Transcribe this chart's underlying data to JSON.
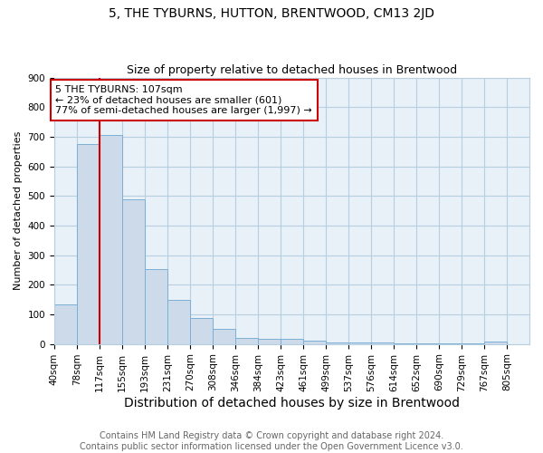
{
  "title": "5, THE TYBURNS, HUTTON, BRENTWOOD, CM13 2JD",
  "subtitle": "Size of property relative to detached houses in Brentwood",
  "xlabel": "Distribution of detached houses by size in Brentwood",
  "ylabel": "Number of detached properties",
  "footer_line1": "Contains HM Land Registry data © Crown copyright and database right 2024.",
  "footer_line2": "Contains public sector information licensed under the Open Government Licence v3.0.",
  "annotation_line1": "5 THE TYBURNS: 107sqm",
  "annotation_line2": "← 23% of detached houses are smaller (601)",
  "annotation_line3": "77% of semi-detached houses are larger (1,997) →",
  "bar_left_edges": [
    40,
    78,
    117,
    155,
    193,
    231,
    270,
    308,
    346,
    384,
    423,
    461,
    499,
    537,
    576,
    614,
    652,
    690,
    729,
    767
  ],
  "bar_heights": [
    135,
    675,
    705,
    490,
    252,
    150,
    87,
    50,
    22,
    18,
    17,
    10,
    6,
    5,
    4,
    3,
    3,
    2,
    1,
    7
  ],
  "bin_width": 38,
  "bar_color": "#ccdaea",
  "bar_edge_color": "#7bafd4",
  "vline_color": "#cc0000",
  "vline_x": 117,
  "ylim": [
    0,
    900
  ],
  "yticks": [
    0,
    100,
    200,
    300,
    400,
    500,
    600,
    700,
    800,
    900
  ],
  "xtick_labels": [
    "40sqm",
    "78sqm",
    "117sqm",
    "155sqm",
    "193sqm",
    "231sqm",
    "270sqm",
    "308sqm",
    "346sqm",
    "384sqm",
    "423sqm",
    "461sqm",
    "499sqm",
    "537sqm",
    "576sqm",
    "614sqm",
    "652sqm",
    "690sqm",
    "729sqm",
    "767sqm",
    "805sqm"
  ],
  "background_color": "#ffffff",
  "plot_bg_color": "#e8f0f8",
  "grid_color": "#b8cfe0",
  "annotation_box_color": "#cc0000",
  "title_fontsize": 10,
  "subtitle_fontsize": 9,
  "xlabel_fontsize": 10,
  "ylabel_fontsize": 8,
  "tick_fontsize": 7.5,
  "footer_fontsize": 7,
  "annotation_fontsize": 8
}
